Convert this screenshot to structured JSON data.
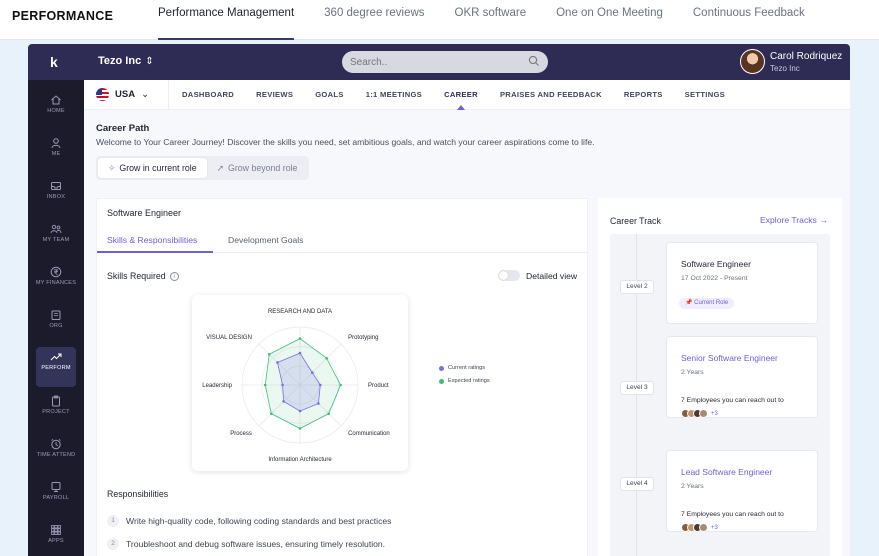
{
  "topnav": {
    "brand": "PERFORMANCE",
    "tabs": [
      "Performance Management",
      "360 degree reviews",
      "OKR software",
      "One on One Meeting",
      "Continuous Feedback"
    ]
  },
  "header": {
    "logo": "k",
    "org": "Tezo Inc",
    "search_placeholder": "Search..",
    "user_name": "Carol Rodriquez",
    "user_org": "Tezo Inc"
  },
  "sidebar": {
    "items": [
      {
        "label": "HOME",
        "icon": "home-icon"
      },
      {
        "label": "ME",
        "icon": "user-icon"
      },
      {
        "label": "INBOX",
        "icon": "inbox-icon"
      },
      {
        "label": "MY TEAM",
        "icon": "team-icon"
      },
      {
        "label": "MY FINANCES",
        "icon": "rupee-icon"
      },
      {
        "label": "ORG",
        "icon": "org-icon"
      },
      {
        "label": "PERFORM",
        "icon": "trend-icon"
      },
      {
        "label": "PROJECT",
        "icon": "clipboard-icon"
      },
      {
        "label": "TIME ATTEND",
        "icon": "clock-icon"
      },
      {
        "label": "PAYROLL",
        "icon": "payroll-icon"
      },
      {
        "label": "APPS",
        "icon": "grid-icon"
      }
    ]
  },
  "subnav": {
    "country": "USA",
    "items": [
      "DASHBOARD",
      "REVIEWS",
      "GOALS",
      "1:1 MEETINGS",
      "CAREER",
      "PRAISES AND FEEDBACK",
      "REPORTS",
      "SETTINGS"
    ]
  },
  "career": {
    "title": "Career Path",
    "description": "Welcome to Your Career Journey! Discover the skills you need, set ambitious goals, and watch your career aspirations come to life.",
    "toggle": [
      "Grow in current role",
      "Grow beyond role"
    ]
  },
  "left": {
    "job": "Software Engineer",
    "tabs": [
      "Skills & Responsibilities",
      "Development Goals"
    ],
    "skills_required": "Skills Required",
    "detailed_view": "Detailed view",
    "responsibilities_title": "Responsibilities",
    "responsibilities": [
      "Write high-quality code, following coding standards and best practices",
      "Troubleshoot and debug software issues, ensuring timely resolution."
    ]
  },
  "chart_data": {
    "type": "radar",
    "axes": [
      "RESEARCH AND DATA",
      "Prototyping",
      "Product",
      "Communication",
      "Information Architecture",
      "Process",
      "Leadership",
      "VISUAL DESIGN"
    ],
    "series": [
      {
        "name": "Current ratings",
        "values": [
          0.55,
          0.3,
          0.35,
          0.45,
          0.45,
          0.4,
          0.3,
          0.55
        ],
        "color": "#7b6fe0"
      },
      {
        "name": "Expected ratings",
        "values": [
          0.8,
          0.65,
          0.7,
          0.7,
          0.75,
          0.7,
          0.6,
          0.75
        ],
        "color": "#3dbf7a"
      }
    ],
    "rlim": [
      0,
      1
    ]
  },
  "right": {
    "title": "Career Track",
    "explore": "Explore Tracks",
    "levels": [
      "Level 2",
      "Level 3",
      "Level 4"
    ],
    "cards": [
      {
        "title": "Software Engineer",
        "sub": "17 Oct 2022 - Present",
        "badge": "Current Role"
      },
      {
        "title": "Senior Software Engineer",
        "sub": "2 Years",
        "employees": "7 Employees you can reach out to",
        "more": "+3"
      },
      {
        "title": "Lead Software Engineer",
        "sub": "2 Years",
        "employees": "7 Employees you can reach out to",
        "more": "+3"
      }
    ]
  }
}
